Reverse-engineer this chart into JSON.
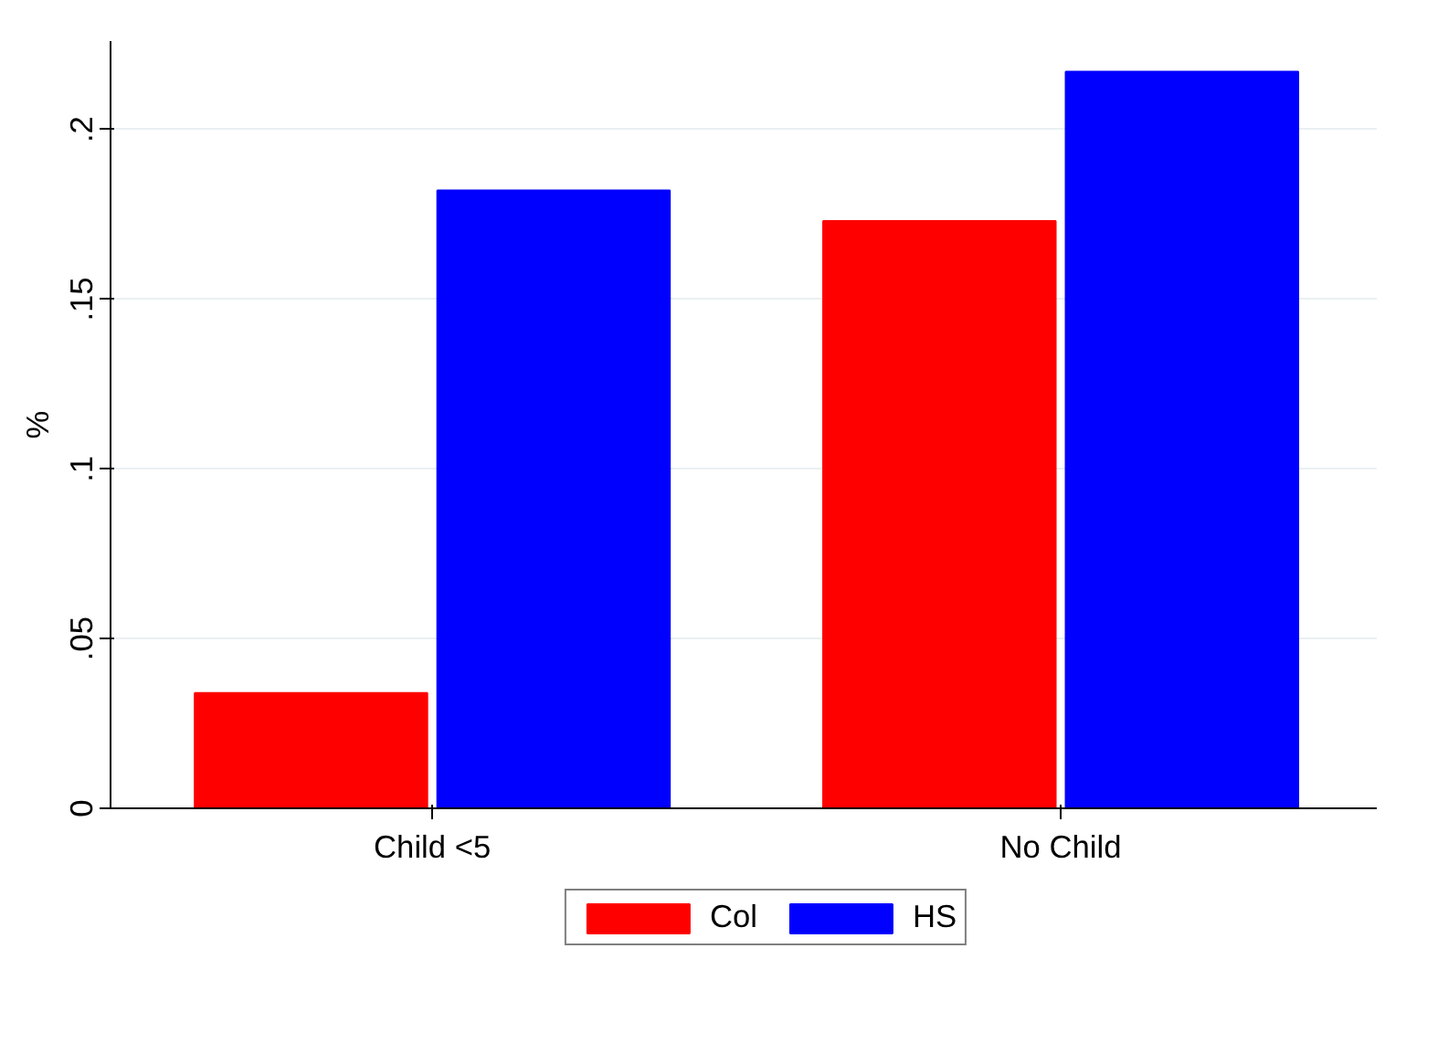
{
  "chart_data": {
    "type": "bar",
    "ylabel": "%",
    "categories": [
      "Child <5",
      "No Child"
    ],
    "series": [
      {
        "name": "Col",
        "color": "#ff0000",
        "values": [
          0.034,
          0.173
        ]
      },
      {
        "name": "HS",
        "color": "#0000ff",
        "values": [
          0.182,
          0.217
        ]
      }
    ],
    "ylim": [
      0,
      0.226
    ],
    "yticks": [
      0,
      {
        "value": 0.05,
        "label": ".05"
      },
      {
        "value": 0.1,
        "label": ".1"
      },
      {
        "value": 0.15,
        "label": ".15"
      },
      {
        "value": 0.2,
        "label": ".2"
      }
    ],
    "grid": "y",
    "legend": "bottom"
  }
}
